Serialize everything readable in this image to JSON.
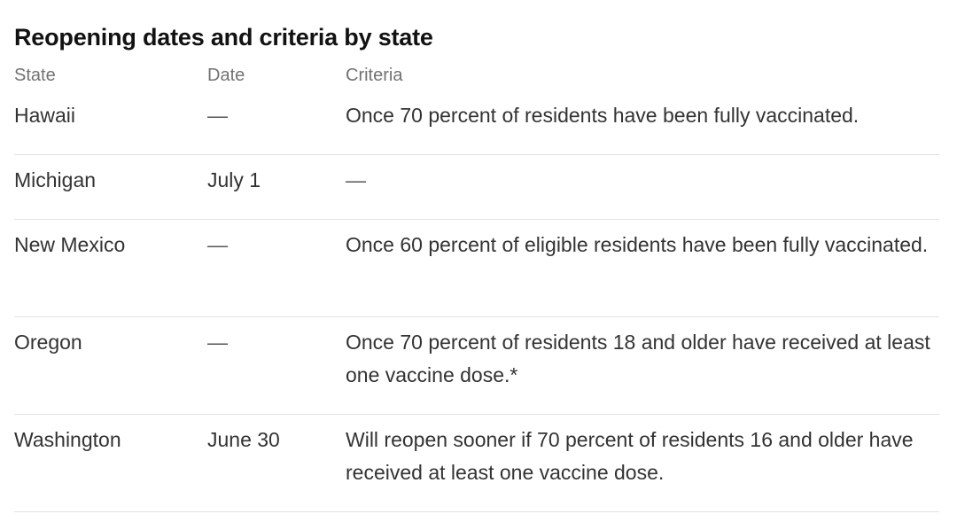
{
  "title": "Reopening dates and criteria by state",
  "columns": {
    "state": "State",
    "date": "Date",
    "criteria": "Criteria"
  },
  "rows": [
    {
      "state": "Hawaii",
      "date": "—",
      "criteria": "Once 70 percent of residents have been fully vaccinated."
    },
    {
      "state": "Michigan",
      "date": "July 1",
      "criteria": "—"
    },
    {
      "state": "New Mexico",
      "date": "—",
      "criteria": "Once 60 percent of eligible residents have been fully vaccinated."
    },
    {
      "state": "Oregon",
      "date": "—",
      "criteria": "Once 70 percent of residents 18 and older have received at least one vaccine dose.*"
    },
    {
      "state": "Washington",
      "date": "June 30",
      "criteria": "Will reopen sooner if 70 percent of residents 16 and older have received at least one vaccine dose."
    }
  ]
}
